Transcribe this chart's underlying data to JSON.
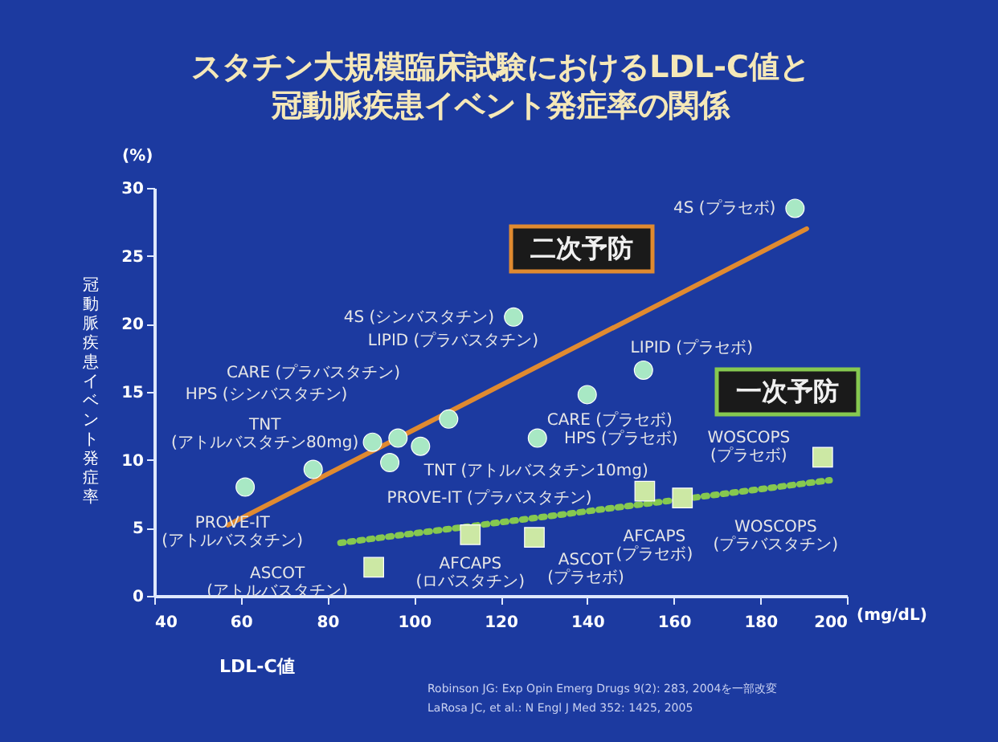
{
  "chart_data": {
    "type": "scatter",
    "title": "スタチン大規模臨床試験におけるLDL-C値と冠動脈疾患イベント発症率の関係",
    "xlabel": "LDL-C値",
    "ylabel": "冠動脈疾患イベント発症率",
    "xlim": [
      40,
      200
    ],
    "xticks": [
      40,
      60,
      80,
      100,
      120,
      140,
      160,
      180,
      200
    ],
    "ylim": [
      0,
      30
    ],
    "yticks": [
      0,
      5,
      10,
      15,
      20,
      25,
      30
    ],
    "grid": false,
    "series": [
      {
        "marker": "circle",
        "color": "#a8e8c4",
        "x": [
          188,
          123,
          108,
          96.3,
          90.4,
          76.7,
          61,
          153,
          140,
          128.5,
          101.5,
          94.4
        ],
        "values": [
          28.5,
          20.5,
          13,
          11.6,
          11.3,
          9.3,
          8,
          16.6,
          14.8,
          11.6,
          11,
          9.8
        ]
      },
      {
        "marker": "square",
        "color": "#cce8a4",
        "x": [
          194.4,
          162,
          153.3,
          113,
          127.8,
          90.7
        ],
        "values": [
          10.2,
          7.2,
          7.7,
          4.5,
          4.3,
          2.1
        ]
      },
      {
        "type": "line",
        "name": "二次予防",
        "color": "#e08a30",
        "line_style": "solid",
        "x": [
          57,
          190.7
        ],
        "values": [
          5.2,
          27
        ]
      },
      {
        "type": "line",
        "name": "一次予防",
        "color": "#86c850",
        "line_style": "dotted",
        "x": [
          83,
          196
        ],
        "values": [
          3.9,
          8.5
        ]
      }
    ],
    "annotations": [
      {
        "text": "4S (プラセボ)",
        "x": 188,
        "y": 28.5
      },
      {
        "text": "4S (シンバスタチン)",
        "x": 123,
        "y": 20.5
      },
      "LIPID (プラバスタチン)",
      "CARE (プラバスタチン)",
      {
        "text": "HPS (シンバスタチン)",
        "x": 90.4,
        "y": 11.3
      },
      {
        "text": "TNT\n(アトルバスタチン80mg)",
        "x": 76.7,
        "y": 9.3
      },
      {
        "text": "PROVE-IT\n(アトルバスタチン)",
        "x": 61,
        "y": 8
      },
      {
        "text": "LIPID (プラセボ)",
        "x": 153,
        "y": 16.6
      },
      {
        "text": "CARE (プラセボ)",
        "x": 140,
        "y": 14.8
      },
      {
        "text": "HPS (プラセボ)",
        "x": 128.5,
        "y": 11.6
      },
      {
        "text": "TNT (アトルバスタチン10mg)",
        "x": 101.5,
        "y": 11
      },
      {
        "text": "PROVE-IT (プラバスタチン)",
        "x": 94.4,
        "y": 9.8
      },
      {
        "text": "WOSCOPS\n(プラセボ)",
        "x": 194.4,
        "y": 10.2
      },
      {
        "text": "WOSCOPS\n(プラバスタチン)",
        "x": 162,
        "y": 7.2
      },
      {
        "text": "AFCAPS\n(プラセボ)",
        "x": 153.3,
        "y": 7.7
      },
      {
        "text": "AFCAPS\n(ロバスタチン)",
        "x": 113,
        "y": 4.5
      },
      {
        "text": "ASCOT\n(プラセボ)",
        "x": 127.8,
        "y": 4.3
      },
      {
        "text": "ASCOT\n(アトルバスタチン)",
        "x": 90.7,
        "y": 2.1
      },
      "(%)",
      "(mg/dL)",
      "Robinson JG: Exp Opin Emerg Drugs 9(2): 283, 2004を一部改変",
      "LaRosa JC, et al.: N Engl J Med 352: 1425, 2005"
    ]
  }
}
